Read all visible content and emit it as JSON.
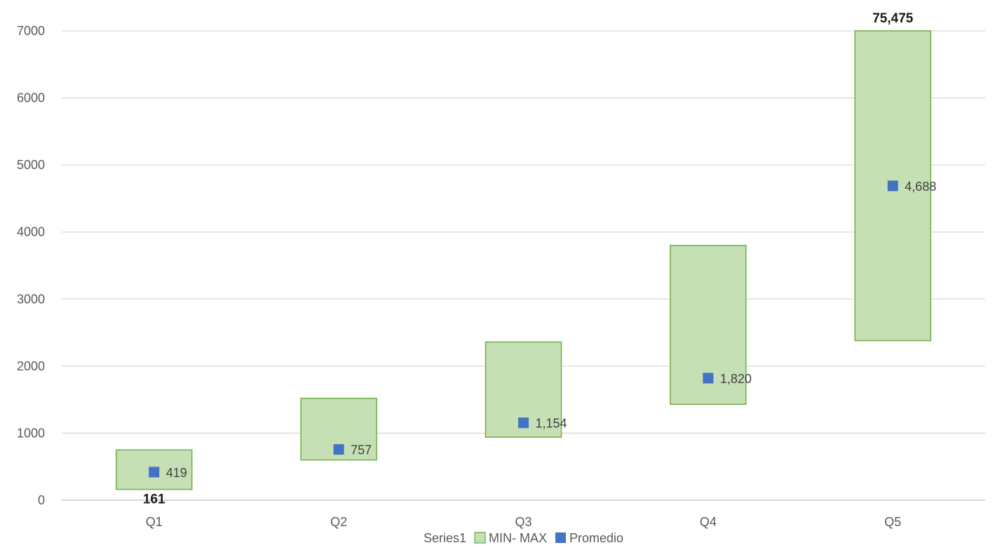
{
  "chart_data": {
    "type": "bar",
    "categories": [
      "Q1",
      "Q2",
      "Q3",
      "Q4",
      "Q5"
    ],
    "series": [
      {
        "name": "MIN- MAX",
        "min": [
          161,
          600,
          940,
          1430,
          2380
        ],
        "max": [
          750,
          1520,
          2360,
          3800,
          75475
        ],
        "color": "#c5e0b4",
        "border": "#70ad47"
      },
      {
        "name": "Promedio",
        "values": [
          419,
          757,
          1154,
          1820,
          4688
        ],
        "labels": [
          "419",
          "757",
          "1,154",
          "1,820",
          "4,688"
        ],
        "color": "#4472c4"
      }
    ],
    "legend": [
      "Series1",
      "MIN- MAX",
      "Promedio"
    ],
    "legend_position": "bottom",
    "extreme_labels": [
      {
        "category": "Q1",
        "text": "161",
        "position": "below-min"
      },
      {
        "category": "Q5",
        "text": "75,475",
        "position": "above-plot"
      }
    ],
    "yticks": [
      "0",
      "1000",
      "2000",
      "3000",
      "4000",
      "5000",
      "6000",
      "7000"
    ],
    "ylim": [
      0,
      7000
    ],
    "grid": true,
    "title": "",
    "xlabel": "",
    "ylabel": ""
  }
}
